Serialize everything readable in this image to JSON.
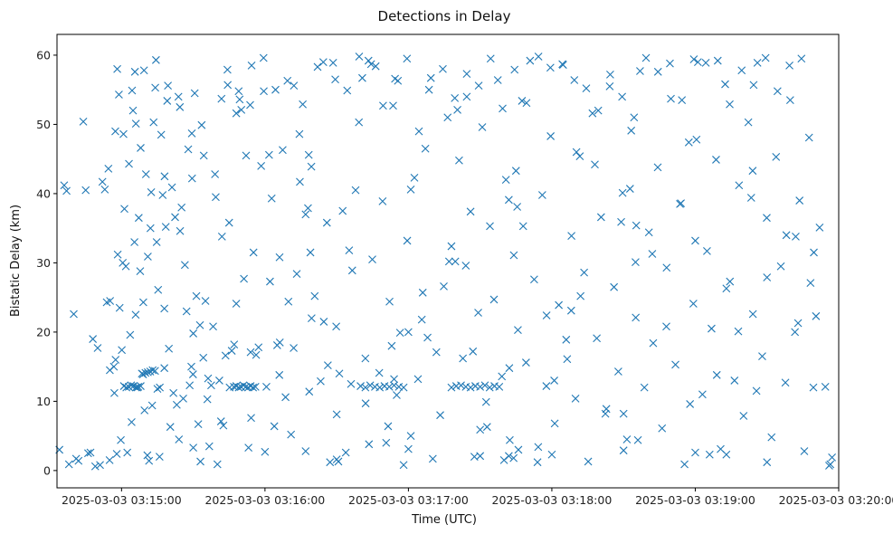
{
  "chart_data": {
    "type": "scatter",
    "title": "Detections in Delay",
    "xlabel": "Time (UTC)",
    "ylabel": "Bistatic Delay (km)",
    "x_ticks": [
      {
        "label": "2025-03-03 03:15:00",
        "t": 0
      },
      {
        "label": "2025-03-03 03:16:00",
        "t": 60
      },
      {
        "label": "2025-03-03 03:17:00",
        "t": 120
      },
      {
        "label": "2025-03-03 03:18:00",
        "t": 180
      },
      {
        "label": "2025-03-03 03:19:00",
        "t": 240
      },
      {
        "label": "2025-03-03 03:20:00",
        "t": 300
      }
    ],
    "y_ticks": [
      0,
      10,
      20,
      30,
      40,
      50,
      60
    ],
    "xlim_seconds": [
      -27,
      300
    ],
    "ylim": [
      -2.5,
      63
    ],
    "grid": false,
    "marker": "x",
    "series_color": "#1f77b4",
    "series": [
      {
        "name": "",
        "t_seconds": [
          -5.5,
          -4.8,
          -3.2,
          -2.6,
          -2.5,
          -1.8,
          -1.6,
          -1.1,
          -0.8,
          -0.3,
          0.1,
          0.5,
          1.2,
          1.8,
          2.4,
          3.1,
          3.6,
          4.2,
          4.8,
          5.4,
          5.9,
          6.6,
          7.2,
          7.8,
          8.5,
          9.1,
          9.6,
          10.2,
          10.8,
          11.5,
          12.1,
          12.8,
          13.4,
          14.1,
          14.7,
          15.3,
          15.9,
          16.6,
          17.2,
          17.9,
          18.5,
          19.1,
          19.8,
          20.4,
          21.1,
          21.7,
          22.4,
          23.1,
          23.8,
          24.5,
          25.1,
          25.8,
          26.5,
          27.2,
          27.9,
          28.5,
          29.2,
          29.9,
          30.6,
          31.3,
          32.1,
          32.8,
          33.5,
          34.2,
          35.1,
          35.9,
          36.7,
          37.5,
          38.3,
          39.1,
          40.1,
          40.9,
          41.8,
          42.6,
          43.5,
          44.3,
          45.2,
          46.1,
          47.1,
          48.0,
          49.0,
          50.1,
          51.2,
          52.1,
          53.1,
          54.2,
          55.2,
          56.3,
          57.3,
          58.4,
          59.5,
          60.6,
          61.7,
          62.8,
          63.9,
          65.1,
          66.2,
          67.4,
          68.6,
          69.8,
          70.9,
          72.1,
          73.3,
          74.6,
          75.8,
          77.0,
          78.3,
          79.5,
          80.8,
          82.0,
          83.3,
          84.6,
          85.9,
          87.2,
          88.5,
          89.8,
          91.1,
          92.5,
          93.8,
          95.2,
          96.5,
          97.9,
          99.3,
          100.7,
          102.1,
          103.5,
          104.9,
          106.3,
          107.8,
          109.2,
          110.7,
          112.1,
          113.6,
          115.1,
          116.5,
          118.0,
          119.5,
          121.0,
          122.5,
          124.0,
          125.6,
          127.1,
          128.6,
          130.2,
          131.7,
          133.3,
          134.8,
          136.4,
          138.0,
          139.6,
          141.2,
          142.8,
          144.4,
          146.0,
          147.6,
          149.2,
          150.9,
          152.5,
          154.1,
          155.8,
          157.4,
          159.1,
          160.8,
          162.4,
          164.1,
          165.8,
          167.5,
          169.2,
          170.9,
          172.6,
          174.3,
          176.0,
          177.7,
          179.5,
          181.2,
          182.9,
          184.7,
          186.4,
          188.2,
          189.9,
          191.7,
          193.5,
          195.2,
          197.0,
          198.8,
          200.6,
          202.4,
          204.2,
          206.0,
          207.8,
          209.6,
          211.4,
          213.2,
          215.1,
          216.9,
          218.7,
          220.6,
          222.4,
          224.3,
          226.1,
          228.0,
          229.8,
          231.7,
          233.6,
          235.5,
          237.3,
          239.2,
          241.1,
          243.0,
          244.9,
          246.8,
          248.7,
          250.6,
          252.5,
          254.5,
          256.4,
          258.3,
          260.2,
          262.2,
          264.1,
          266.0,
          268.0,
          269.9,
          271.9,
          273.8,
          275.8,
          277.7,
          279.7,
          281.7,
          283.6,
          285.6,
          287.6,
          289.6,
          -4.9,
          5.6,
          17.9,
          29.5,
          41.6,
          53.8,
          66.1,
          78.5,
          90.7,
          103.3,
          115.6,
          128.0,
          140.5,
          152.9,
          165.5,
          177.8,
          190.3,
          202.8,
          215.3,
          227.9,
          240.5,
          253.0,
          265.6,
          278.1,
          290.5,
          12.4,
          36.2,
          62.1,
          86.3,
          111.5,
          137.0,
          162.2,
          188.1,
          212.7,
          237.8,
          263.4,
          288.2,
          -12.0,
          -8.0,
          8.0,
          24.0,
          48.0,
          72.0,
          96.0,
          120.0,
          144.0,
          168.0,
          192.0,
          216.0,
          240.0,
          264.0,
          -6.2,
          6.0,
          18.0,
          30.0,
          42.0,
          54.0,
          66.0,
          78.0,
          90.0,
          102.0,
          114.0,
          126.0,
          138.0,
          150.0,
          162.0,
          174.0,
          186.0,
          198.0,
          210.0,
          222.0,
          234.0,
          246.0,
          258.0,
          270.0,
          282.0,
          -24.0,
          -20.0,
          -16.0,
          -14.0,
          -10.0,
          -7.0,
          -3.0,
          0.8,
          4.4,
          9.4,
          14.4,
          19.4,
          24.4,
          29.4,
          34.4,
          39.4,
          44.4,
          49.4,
          54.4,
          59.4,
          64.4,
          69.4,
          74.4,
          79.4,
          84.4,
          89.4,
          94.4,
          99.4,
          104.4,
          109.4,
          114.4,
          119.4,
          124.4,
          129.4,
          134.4,
          139.4,
          144.4,
          149.4,
          154.4,
          159.4,
          164.4,
          169.4,
          174.4,
          179.4,
          184.4,
          189.4,
          194.4,
          199.4,
          204.4,
          209.4,
          214.4,
          219.4,
          224.4,
          229.4,
          234.4,
          239.4,
          244.4,
          249.4,
          254.4,
          259.4,
          264.4,
          269.4,
          274.4,
          279.4,
          284.4,
          289.4,
          294.4,
          1.0,
          2.0,
          3.0,
          4.0,
          5.0,
          6.0,
          7.0,
          8.0,
          9.0,
          10.0,
          11.0,
          12.0,
          13.0,
          14.0,
          15.0,
          16.0,
          47.0,
          48.0,
          49.0,
          50.0,
          51.0,
          52.0,
          53.0,
          54.0,
          55.0,
          56.0,
          100.0,
          102.0,
          104.0,
          106.0,
          108.0,
          110.0,
          112.0,
          114.0,
          116.0,
          118.0,
          140.0,
          142.0,
          144.0,
          146.0,
          148.0,
          150.0,
          152.0,
          154.0,
          156.0,
          158.0,
          160.0,
          162.0,
          164.0,
          166.0,
          -22.0,
          -18.0,
          -13.0,
          -9.0,
          -5.0,
          30.0,
          60.0,
          90.0,
          120.0,
          150.0,
          180.0,
          210.0,
          240.0,
          270.0,
          296.0,
          296.5,
          297.2,
          -26.0,
          -19.0,
          -11.0,
          -2.0,
          33.0,
          77.0,
          121.0,
          165.0,
          209.0,
          253.0,
          292.0,
          -23.0,
          -15.0,
          11.0,
          45.0,
          79.0,
          113.0,
          147.0,
          181.0,
          215.0,
          249.0,
          283.0
        ],
        "values": [
          43.6,
          24.5,
          15.0,
          49.0,
          16.0,
          58.0,
          31.2,
          54.3,
          23.5,
          4.4,
          17.4,
          30.0,
          37.8,
          29.5,
          2.6,
          44.3,
          19.6,
          7.0,
          52.0,
          33.0,
          22.5,
          12.0,
          36.5,
          28.8,
          14.0,
          24.3,
          8.7,
          42.8,
          2.2,
          1.4,
          35.0,
          9.4,
          50.3,
          55.3,
          33.0,
          26.1,
          2.0,
          48.5,
          39.8,
          14.8,
          35.2,
          53.4,
          17.6,
          6.3,
          40.9,
          11.2,
          36.6,
          9.5,
          54.0,
          34.6,
          38.0,
          10.4,
          29.7,
          23.0,
          46.4,
          12.3,
          15.0,
          13.9,
          54.5,
          25.2,
          6.7,
          21.0,
          49.9,
          16.3,
          24.5,
          10.3,
          3.5,
          12.3,
          20.8,
          42.8,
          0.9,
          13.0,
          53.7,
          6.5,
          16.6,
          57.9,
          12.0,
          17.3,
          18.2,
          51.6,
          54.8,
          52.1,
          27.7,
          45.5,
          3.3,
          7.6,
          31.5,
          16.7,
          17.8,
          44.0,
          54.8,
          12.1,
          45.6,
          39.3,
          6.4,
          18.1,
          18.5,
          46.3,
          10.6,
          24.4,
          5.2,
          55.6,
          28.4,
          41.7,
          52.9,
          37.0,
          45.6,
          22.0,
          25.2,
          58.3,
          12.9,
          21.5,
          35.8,
          1.2,
          58.9,
          20.8,
          14.0,
          37.5,
          2.6,
          31.8,
          28.9,
          40.5,
          50.3,
          56.7,
          9.7,
          3.8,
          30.5,
          58.4,
          14.1,
          38.9,
          4.0,
          24.4,
          52.7,
          10.9,
          19.9,
          0.8,
          33.2,
          5.0,
          42.3,
          13.2,
          21.8,
          46.5,
          55.0,
          1.7,
          17.1,
          8.0,
          26.6,
          51.0,
          12.0,
          30.2,
          44.8,
          16.2,
          57.3,
          37.4,
          2.0,
          22.8,
          49.6,
          9.9,
          35.3,
          24.7,
          56.4,
          13.6,
          42.0,
          4.4,
          31.1,
          20.3,
          53.4,
          15.6,
          59.2,
          27.6,
          3.4,
          39.8,
          12.2,
          48.3,
          6.8,
          23.9,
          58.6,
          16.1,
          33.9,
          10.4,
          45.4,
          28.6,
          1.3,
          51.6,
          19.1,
          36.6,
          8.2,
          55.5,
          26.5,
          14.3,
          40.1,
          4.5,
          49.1,
          22.1,
          57.7,
          12.0,
          34.4,
          18.4,
          43.8,
          6.1,
          29.3,
          53.7,
          15.3,
          38.5,
          0.9,
          47.4,
          24.1,
          59.0,
          11.0,
          31.7,
          20.5,
          44.9,
          3.1,
          55.8,
          27.3,
          13.0,
          41.2,
          7.9,
          50.3,
          22.6,
          58.9,
          16.5,
          36.5,
          4.8,
          45.3,
          29.5,
          12.7,
          53.5,
          20.0,
          39.0,
          2.8,
          48.1,
          31.5,
          14.5,
          57.6,
          23.4,
          42.2,
          7.1,
          52.8,
          30.8,
          11.4,
          1.3,
          59.2,
          56.3,
          19.2,
          52.1,
          6.3,
          38.1,
          22.4,
          46.0,
          8.9,
          35.4,
          20.8,
          47.8,
          2.3,
          11.5,
          34.0,
          22.3,
          40.2,
          13.3,
          27.3,
          15.2,
          6.4,
          30.2,
          14.8,
          23.1,
          40.7,
          9.6,
          39.4,
          27.1,
          19.0,
          41.7,
          46.6,
          4.5,
          24.1,
          17.7,
          12.5,
          20.0,
          29.6,
          35.3,
          25.2,
          4.4,
          33.2,
          43.3,
          24.3,
          50.1,
          42.5,
          19.8,
          33.8,
          17.1,
          13.8,
          37.9,
          8.1,
          16.2,
          13.2,
          25.7,
          32.4,
          5.9,
          39.1,
          1.2,
          18.9,
          44.2,
          8.2,
          31.3,
          38.6,
          2.3,
          20.1,
          27.9,
          33.8,
          41.2,
          22.6,
          50.4,
          2.5,
          17.7,
          40.6,
          11.2,
          48.6,
          54.9,
          57.8,
          59.3,
          55.6,
          52.5,
          48.7,
          45.5,
          39.5,
          55.7,
          53.6,
          58.5,
          59.6,
          55.0,
          56.3,
          48.6,
          43.9,
          59.0,
          56.5,
          54.9,
          59.8,
          58.7,
          52.7,
          56.6,
          59.5,
          49.0,
          56.7,
          58.0,
          53.8,
          54.0,
          55.6,
          59.5,
          52.3,
          57.9,
          53.1,
          59.8,
          58.2,
          58.7,
          56.4,
          55.2,
          52.0,
          57.2,
          54.0,
          51.0,
          59.6,
          57.6,
          58.8,
          53.5,
          59.4,
          58.9,
          59.2,
          52.9,
          57.8,
          55.7,
          59.6,
          54.8,
          58.5,
          59.5,
          12.0,
          12.1,
          12.2,
          12.0,
          12.1,
          12.3,
          12.2,
          12.0,
          12.1,
          12.2,
          13.9,
          14.1,
          14.2,
          14.3,
          14.5,
          14.4,
          11.8,
          12.0,
          12.1,
          12.2,
          12.0,
          12.1,
          12.3,
          12.1,
          12.0,
          12.2,
          12.0,
          12.1,
          12.2,
          12.0,
          12.3,
          12.1,
          12.0,
          12.2,
          12.1,
          12.3,
          12.1,
          12.0,
          12.2,
          12.3,
          12.1,
          12.0,
          12.2,
          12.1,
          12.3,
          12.0,
          12.2,
          12.1,
          1.5,
          2.1,
          1.8,
          3.0,
          0.9,
          1.4,
          2.6,
          0.8,
          1.5,
          3.3,
          2.7,
          1.6,
          3.1,
          2.1,
          2.3,
          2.9,
          2.6,
          1.2,
          0.7,
          0.9,
          1.9,
          3.0,
          1.7,
          0.6,
          2.4,
          1.3,
          2.8,
          40.6,
          43.3,
          35.9,
          26.3,
          35.1,
          40.4,
          40.5,
          30.9,
          35.8,
          31.5,
          18.0,
          17.2,
          13.0,
          30.1,
          13.8,
          21.3,
          21.6,
          20.7,
          17.7,
          25.6,
          40.3,
          45.7,
          33.9,
          29.0
        ]
      }
    ]
  }
}
